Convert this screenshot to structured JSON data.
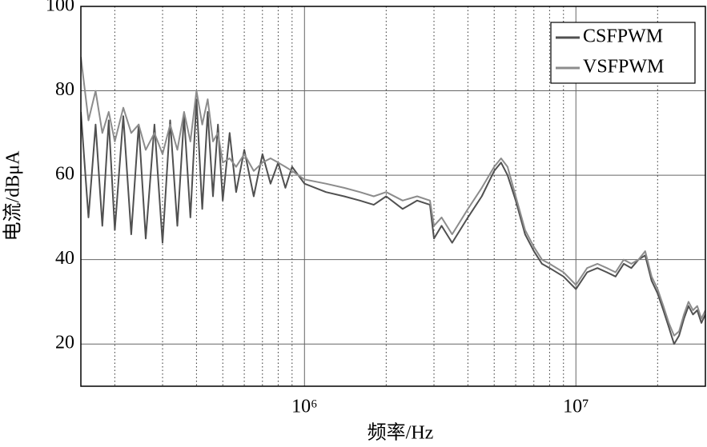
{
  "chart_data": {
    "type": "line",
    "xlabel": "频率/Hz",
    "ylabel": "电流/dBμA",
    "x_log": true,
    "grid": true,
    "legend": "upper right",
    "xlim": [
      150000,
      30000000
    ],
    "xticks": [
      {
        "value": 1000000,
        "label": "10⁶"
      },
      {
        "value": 10000000,
        "label": "10⁷"
      }
    ],
    "xminorticks": [
      200000,
      300000,
      400000,
      500000,
      600000,
      700000,
      800000,
      900000,
      2000000,
      3000000,
      4000000,
      5000000,
      6000000,
      7000000,
      8000000,
      9000000,
      20000000
    ],
    "ylim": [
      10,
      100
    ],
    "yticks": [
      20,
      40,
      60,
      80,
      100
    ],
    "x": [
      150000,
      160000,
      170000,
      180000,
      190000,
      200000,
      215000,
      230000,
      245000,
      260000,
      280000,
      300000,
      320000,
      340000,
      360000,
      380000,
      400000,
      420000,
      440000,
      460000,
      480000,
      500000,
      530000,
      560000,
      600000,
      650000,
      700000,
      750000,
      800000,
      850000,
      900000,
      1000000,
      1200000,
      1400000,
      1600000,
      1800000,
      2000000,
      2300000,
      2600000,
      2900000,
      3000000,
      3200000,
      3500000,
      4000000,
      4500000,
      5000000,
      5300000,
      5600000,
      6000000,
      6500000,
      7000000,
      7500000,
      8000000,
      9000000,
      10000000,
      11000000,
      12000000,
      13000000,
      14000000,
      15000000,
      16000000,
      17000000,
      18000000,
      19000000,
      20000000,
      21000000,
      22000000,
      23000000,
      24000000,
      25000000,
      26000000,
      27000000,
      28000000,
      29000000,
      30000000
    ],
    "series": [
      {
        "name": "CSFPWM",
        "color": "#505050",
        "values": [
          75,
          50,
          72,
          48,
          73,
          47,
          74,
          46,
          72,
          45,
          72,
          44,
          73,
          48,
          74,
          50,
          78,
          52,
          75,
          55,
          72,
          54,
          70,
          56,
          66,
          55,
          65,
          58,
          63,
          57,
          62,
          58,
          56,
          55,
          54,
          53,
          55,
          52,
          54,
          53,
          45,
          48,
          44,
          50,
          55,
          61,
          63,
          60,
          54,
          46,
          42,
          39,
          38,
          36,
          33,
          37,
          38,
          37,
          36,
          39,
          38,
          40,
          41,
          35,
          32,
          28,
          24,
          20,
          22,
          26,
          29,
          27,
          28,
          25,
          27
        ]
      },
      {
        "name": "VSFPWM",
        "color": "#8c8c8c",
        "values": [
          88,
          73,
          80,
          70,
          75,
          68,
          76,
          70,
          72,
          66,
          70,
          65,
          72,
          66,
          75,
          68,
          80,
          72,
          78,
          68,
          70,
          63,
          64,
          62,
          65,
          61,
          63,
          64,
          63,
          62,
          61,
          59,
          58,
          57,
          56,
          55,
          56,
          54,
          55,
          54,
          48,
          50,
          46,
          52,
          57,
          62,
          64,
          62,
          55,
          47,
          43,
          40,
          39,
          37,
          34,
          38,
          39,
          38,
          37,
          40,
          39,
          40,
          42,
          36,
          33,
          29,
          25,
          22,
          23,
          27,
          30,
          28,
          29,
          26,
          28
        ]
      }
    ]
  }
}
